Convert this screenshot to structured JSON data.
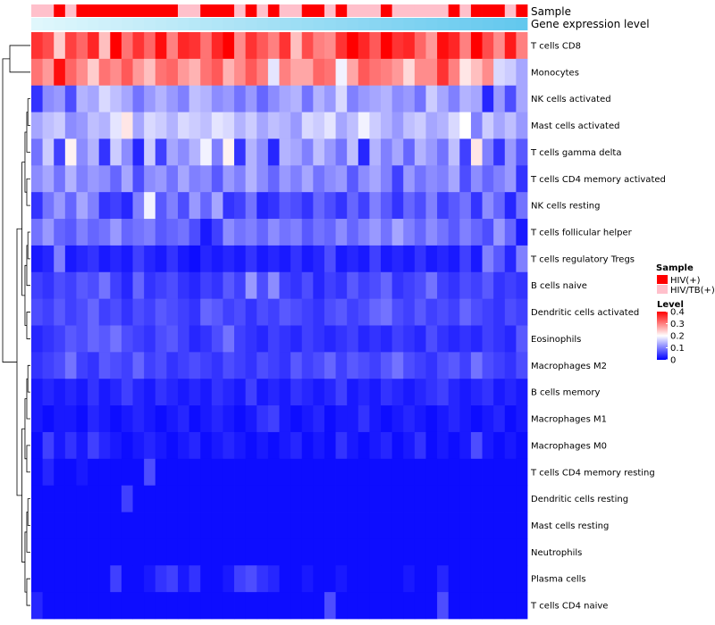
{
  "chart_data": {
    "type": "heatmap",
    "annotation_labels": [
      "Sample",
      "Gene expression level"
    ],
    "sample_groups": {
      "values": [
        1,
        1,
        0,
        1,
        0,
        0,
        0,
        0,
        0,
        0,
        0,
        0,
        0,
        1,
        1,
        0,
        0,
        0,
        1,
        0,
        1,
        0,
        1,
        1,
        0,
        0,
        1,
        0,
        1,
        1,
        1,
        0,
        1,
        1,
        1,
        1,
        1,
        0,
        1,
        0,
        0,
        0,
        1,
        0
      ],
      "legend": [
        {
          "label": "HIV(+)",
          "color": "#ff0000"
        },
        {
          "label": "HIV/TB(+)",
          "color": "#ffc0cb"
        }
      ]
    },
    "expression_bar": {
      "start_color": "#e0f7fc",
      "end_color": "#63c8ee"
    },
    "rows": [
      {
        "label": "T cells CD8",
        "values": [
          0.36,
          0.34,
          0.24,
          0.35,
          0.32,
          0.37,
          0.25,
          0.4,
          0.31,
          0.36,
          0.32,
          0.39,
          0.3,
          0.37,
          0.36,
          0.31,
          0.37,
          0.4,
          0.29,
          0.36,
          0.33,
          0.3,
          0.36,
          0.25,
          0.34,
          0.3,
          0.29,
          0.36,
          0.42,
          0.37,
          0.33,
          0.4,
          0.36,
          0.37,
          0.32,
          0.28,
          0.39,
          0.37,
          0.3,
          0.41,
          0.34,
          0.29,
          0.38,
          0.3
        ]
      },
      {
        "label": "Monocytes",
        "values": [
          0.31,
          0.28,
          0.39,
          0.32,
          0.29,
          0.24,
          0.31,
          0.29,
          0.33,
          0.28,
          0.25,
          0.31,
          0.32,
          0.28,
          0.26,
          0.31,
          0.33,
          0.26,
          0.29,
          0.33,
          0.3,
          0.18,
          0.3,
          0.27,
          0.27,
          0.32,
          0.31,
          0.19,
          0.27,
          0.33,
          0.31,
          0.3,
          0.28,
          0.23,
          0.29,
          0.29,
          0.36,
          0.3,
          0.22,
          0.25,
          0.29,
          0.17,
          0.16,
          0.13
        ]
      },
      {
        "label": "NK cells activated",
        "values": [
          0.04,
          0.11,
          0.12,
          0.06,
          0.14,
          0.13,
          0.17,
          0.15,
          0.13,
          0.09,
          0.12,
          0.14,
          0.12,
          0.1,
          0.15,
          0.14,
          0.11,
          0.12,
          0.09,
          0.12,
          0.08,
          0.11,
          0.13,
          0.14,
          0.09,
          0.14,
          0.12,
          0.17,
          0.1,
          0.12,
          0.13,
          0.14,
          0.11,
          0.12,
          0.09,
          0.16,
          0.13,
          0.1,
          0.14,
          0.13,
          0.03,
          0.12,
          0.06,
          0.13
        ]
      },
      {
        "label": "Mast cells activated",
        "values": [
          0.13,
          0.15,
          0.16,
          0.11,
          0.12,
          0.15,
          0.14,
          0.18,
          0.22,
          0.13,
          0.17,
          0.16,
          0.14,
          0.17,
          0.16,
          0.15,
          0.18,
          0.17,
          0.14,
          0.16,
          0.13,
          0.15,
          0.14,
          0.12,
          0.17,
          0.16,
          0.18,
          0.13,
          0.15,
          0.19,
          0.16,
          0.14,
          0.12,
          0.15,
          0.16,
          0.13,
          0.14,
          0.17,
          0.2,
          0.1,
          0.16,
          0.13,
          0.15,
          0.12
        ]
      },
      {
        "label": "T cells gamma delta",
        "values": [
          0.09,
          0.16,
          0.05,
          0.21,
          0.11,
          0.14,
          0.04,
          0.16,
          0.11,
          0.03,
          0.16,
          0.05,
          0.13,
          0.11,
          0.14,
          0.19,
          0.1,
          0.21,
          0.04,
          0.14,
          0.11,
          0.03,
          0.14,
          0.13,
          0.1,
          0.15,
          0.12,
          0.09,
          0.15,
          0.03,
          0.14,
          0.1,
          0.13,
          0.08,
          0.14,
          0.12,
          0.09,
          0.15,
          0.05,
          0.22,
          0.1,
          0.04,
          0.12,
          0.07
        ]
      },
      {
        "label": "T cells CD4 memory activated",
        "values": [
          0.11,
          0.13,
          0.09,
          0.14,
          0.1,
          0.12,
          0.11,
          0.08,
          0.13,
          0.06,
          0.11,
          0.12,
          0.09,
          0.13,
          0.1,
          0.11,
          0.07,
          0.12,
          0.1,
          0.14,
          0.11,
          0.08,
          0.12,
          0.1,
          0.13,
          0.09,
          0.11,
          0.12,
          0.07,
          0.11,
          0.13,
          0.1,
          0.05,
          0.12,
          0.09,
          0.11,
          0.1,
          0.13,
          0.06,
          0.11,
          0.08,
          0.1,
          0.12,
          0.04
        ]
      },
      {
        "label": "NK cells resting",
        "values": [
          0.04,
          0.09,
          0.12,
          0.08,
          0.13,
          0.1,
          0.04,
          0.05,
          0.03,
          0.1,
          0.19,
          0.07,
          0.1,
          0.06,
          0.12,
          0.08,
          0.13,
          0.04,
          0.05,
          0.09,
          0.03,
          0.04,
          0.07,
          0.06,
          0.04,
          0.08,
          0.06,
          0.04,
          0.08,
          0.05,
          0.1,
          0.07,
          0.04,
          0.08,
          0.06,
          0.1,
          0.05,
          0.07,
          0.09,
          0.04,
          0.11,
          0.08,
          0.03,
          0.09
        ]
      },
      {
        "label": "T cells follicular helper",
        "values": [
          0.09,
          0.12,
          0.08,
          0.07,
          0.1,
          0.08,
          0.09,
          0.12,
          0.08,
          0.09,
          0.1,
          0.07,
          0.08,
          0.09,
          0.06,
          0.02,
          0.05,
          0.11,
          0.09,
          0.1,
          0.08,
          0.11,
          0.09,
          0.1,
          0.07,
          0.09,
          0.08,
          0.11,
          0.08,
          0.1,
          0.12,
          0.09,
          0.13,
          0.1,
          0.08,
          0.11,
          0.09,
          0.07,
          0.1,
          0.08,
          0.06,
          0.12,
          0.08,
          0.02
        ]
      },
      {
        "label": "T cells regulatory  Tregs",
        "values": [
          0.02,
          0.03,
          0.1,
          0.02,
          0.03,
          0.04,
          0.02,
          0.03,
          0.02,
          0.05,
          0.03,
          0.02,
          0.04,
          0.02,
          0.01,
          0.03,
          0.02,
          0.03,
          0.02,
          0.04,
          0.02,
          0.03,
          0.02,
          0.04,
          0.02,
          0.03,
          0.06,
          0.02,
          0.03,
          0.02,
          0.05,
          0.02,
          0.03,
          0.02,
          0.04,
          0.02,
          0.03,
          0.02,
          0.05,
          0.02,
          0.1,
          0.07,
          0.03,
          0.1
        ]
      },
      {
        "label": "B cells naive",
        "values": [
          0.05,
          0.04,
          0.06,
          0.05,
          0.07,
          0.06,
          0.09,
          0.05,
          0.03,
          0.08,
          0.04,
          0.05,
          0.06,
          0.04,
          0.03,
          0.05,
          0.04,
          0.07,
          0.05,
          0.12,
          0.06,
          0.11,
          0.05,
          0.04,
          0.06,
          0.03,
          0.05,
          0.04,
          0.07,
          0.05,
          0.06,
          0.08,
          0.04,
          0.05,
          0.06,
          0.09,
          0.05,
          0.04,
          0.06,
          0.05,
          0.07,
          0.04,
          0.05,
          0.04
        ]
      },
      {
        "label": "Dendritic cells activated",
        "values": [
          0.06,
          0.05,
          0.07,
          0.05,
          0.06,
          0.08,
          0.05,
          0.06,
          0.04,
          0.06,
          0.05,
          0.07,
          0.06,
          0.05,
          0.04,
          0.08,
          0.07,
          0.05,
          0.06,
          0.04,
          0.06,
          0.05,
          0.07,
          0.06,
          0.05,
          0.04,
          0.06,
          0.07,
          0.05,
          0.06,
          0.08,
          0.09,
          0.06,
          0.05,
          0.07,
          0.05,
          0.06,
          0.05,
          0.08,
          0.06,
          0.05,
          0.04,
          0.06,
          0.05
        ]
      },
      {
        "label": "Eosinophils",
        "values": [
          0.03,
          0.04,
          0.05,
          0.07,
          0.06,
          0.08,
          0.07,
          0.09,
          0.06,
          0.05,
          0.04,
          0.06,
          0.07,
          0.05,
          0.03,
          0.04,
          0.06,
          0.09,
          0.05,
          0.04,
          0.03,
          0.05,
          0.04,
          0.03,
          0.05,
          0.04,
          0.03,
          0.04,
          0.05,
          0.03,
          0.04,
          0.03,
          0.05,
          0.04,
          0.03,
          0.06,
          0.04,
          0.03,
          0.04,
          0.03,
          0.05,
          0.04,
          0.03,
          0.07
        ]
      },
      {
        "label": "Macrophages M2",
        "values": [
          0.04,
          0.05,
          0.06,
          0.09,
          0.05,
          0.04,
          0.07,
          0.06,
          0.05,
          0.08,
          0.05,
          0.06,
          0.04,
          0.05,
          0.06,
          0.05,
          0.04,
          0.06,
          0.05,
          0.04,
          0.06,
          0.05,
          0.04,
          0.07,
          0.05,
          0.06,
          0.08,
          0.05,
          0.07,
          0.06,
          0.05,
          0.07,
          0.09,
          0.06,
          0.05,
          0.04,
          0.06,
          0.07,
          0.05,
          0.09,
          0.06,
          0.05,
          0.04,
          0.06
        ]
      },
      {
        "label": "B cells memory",
        "values": [
          0.02,
          0.03,
          0.02,
          0.03,
          0.02,
          0.04,
          0.02,
          0.03,
          0.05,
          0.03,
          0.02,
          0.04,
          0.03,
          0.02,
          0.03,
          0.02,
          0.04,
          0.03,
          0.02,
          0.05,
          0.02,
          0.03,
          0.02,
          0.04,
          0.03,
          0.02,
          0.03,
          0.05,
          0.02,
          0.03,
          0.02,
          0.04,
          0.03,
          0.02,
          0.03,
          0.04,
          0.05,
          0.03,
          0.02,
          0.03,
          0.04,
          0.02,
          0.03,
          0.02
        ]
      },
      {
        "label": "Macrophages M1",
        "values": [
          0.02,
          0.01,
          0.02,
          0.02,
          0.01,
          0.03,
          0.02,
          0.01,
          0.02,
          0.03,
          0.02,
          0.01,
          0.02,
          0.03,
          0.01,
          0.02,
          0.03,
          0.02,
          0.01,
          0.02,
          0.04,
          0.05,
          0.02,
          0.01,
          0.02,
          0.03,
          0.01,
          0.02,
          0.02,
          0.04,
          0.02,
          0.01,
          0.02,
          0.03,
          0.02,
          0.01,
          0.02,
          0.03,
          0.02,
          0.01,
          0.02,
          0.03,
          0.01,
          0.02
        ]
      },
      {
        "label": "Macrophages M0",
        "values": [
          0.01,
          0.05,
          0.02,
          0.04,
          0.02,
          0.05,
          0.03,
          0.02,
          0.01,
          0.02,
          0.03,
          0.02,
          0.01,
          0.02,
          0.03,
          0.01,
          0.02,
          0.03,
          0.02,
          0.01,
          0.02,
          0.01,
          0.02,
          0.03,
          0.01,
          0.02,
          0.01,
          0.04,
          0.02,
          0.01,
          0.02,
          0.03,
          0.01,
          0.02,
          0.04,
          0.01,
          0.02,
          0.01,
          0.02,
          0.06,
          0.02,
          0.01,
          0.02,
          0.01
        ]
      },
      {
        "label": "T cells CD4 memory resting",
        "values": [
          0.01,
          0.03,
          0.01,
          0.01,
          0.02,
          0.01,
          0.01,
          0.01,
          0.01,
          0.01,
          0.06,
          0.01,
          0.01,
          0.01,
          0.01,
          0.01,
          0.01,
          0.01,
          0.01,
          0.01,
          0.01,
          0.01,
          0.01,
          0.01,
          0.01,
          0.01,
          0.01,
          0.01,
          0.01,
          0.01,
          0.01,
          0.01,
          0.01,
          0.01,
          0.01,
          0.01,
          0.01,
          0.01,
          0.01,
          0.01,
          0.01,
          0.01,
          0.01,
          0.01
        ]
      },
      {
        "label": "Dendritic cells resting",
        "values": [
          0.01,
          0.01,
          0.01,
          0.01,
          0.01,
          0.01,
          0.01,
          0.01,
          0.05,
          0.01,
          0.01,
          0.01,
          0.01,
          0.01,
          0.01,
          0.01,
          0.01,
          0.01,
          0.01,
          0.01,
          0.01,
          0.01,
          0.01,
          0.01,
          0.01,
          0.01,
          0.01,
          0.01,
          0.01,
          0.01,
          0.01,
          0.01,
          0.01,
          0.01,
          0.01,
          0.01,
          0.01,
          0.01,
          0.01,
          0.01,
          0.01,
          0.01,
          0.01,
          0.01
        ]
      },
      {
        "label": "Mast cells resting",
        "values": [
          0.01,
          0.01,
          0.01,
          0.01,
          0.01,
          0.01,
          0.01,
          0.01,
          0.01,
          0.01,
          0.01,
          0.01,
          0.01,
          0.01,
          0.01,
          0.01,
          0.01,
          0.01,
          0.01,
          0.01,
          0.01,
          0.01,
          0.01,
          0.01,
          0.01,
          0.01,
          0.01,
          0.01,
          0.01,
          0.01,
          0.01,
          0.01,
          0.01,
          0.01,
          0.01,
          0.01,
          0.01,
          0.01,
          0.01,
          0.01,
          0.01,
          0.01,
          0.01,
          0.01
        ]
      },
      {
        "label": "Neutrophils",
        "values": [
          0.01,
          0.01,
          0.01,
          0.01,
          0.01,
          0.01,
          0.01,
          0.01,
          0.01,
          0.01,
          0.01,
          0.01,
          0.01,
          0.01,
          0.01,
          0.01,
          0.01,
          0.01,
          0.01,
          0.01,
          0.01,
          0.01,
          0.01,
          0.01,
          0.01,
          0.01,
          0.01,
          0.01,
          0.01,
          0.01,
          0.01,
          0.01,
          0.01,
          0.01,
          0.01,
          0.01,
          0.01,
          0.01,
          0.01,
          0.01,
          0.01,
          0.01,
          0.01,
          0.01
        ]
      },
      {
        "label": "Plasma cells",
        "values": [
          0.01,
          0.01,
          0.01,
          0.01,
          0.01,
          0.01,
          0.01,
          0.05,
          0.01,
          0.01,
          0.02,
          0.04,
          0.05,
          0.02,
          0.04,
          0.01,
          0.01,
          0.02,
          0.05,
          0.06,
          0.04,
          0.03,
          0.01,
          0.01,
          0.02,
          0.01,
          0.01,
          0.02,
          0.01,
          0.01,
          0.01,
          0.01,
          0.01,
          0.02,
          0.01,
          0.01,
          0.03,
          0.01,
          0.01,
          0.01,
          0.01,
          0.01,
          0.01,
          0.01
        ]
      },
      {
        "label": "T cells CD4 naive",
        "values": [
          0.03,
          0.01,
          0.01,
          0.01,
          0.01,
          0.01,
          0.01,
          0.01,
          0.01,
          0.01,
          0.01,
          0.01,
          0.01,
          0.01,
          0.01,
          0.01,
          0.01,
          0.01,
          0.01,
          0.01,
          0.01,
          0.01,
          0.01,
          0.01,
          0.01,
          0.01,
          0.06,
          0.01,
          0.01,
          0.01,
          0.01,
          0.01,
          0.01,
          0.01,
          0.01,
          0.01,
          0.06,
          0.01,
          0.01,
          0.01,
          0.01,
          0.01,
          0.01,
          0.01
        ]
      }
    ],
    "color_scale": {
      "title": "Level",
      "min": 0,
      "max": 0.4,
      "ticks": [
        0,
        0.1,
        0.2,
        0.3,
        0.4
      ],
      "colors": [
        "#0000ff",
        "#ffffff",
        "#ff0000"
      ]
    },
    "legends": {
      "sample_title": "Sample"
    }
  }
}
